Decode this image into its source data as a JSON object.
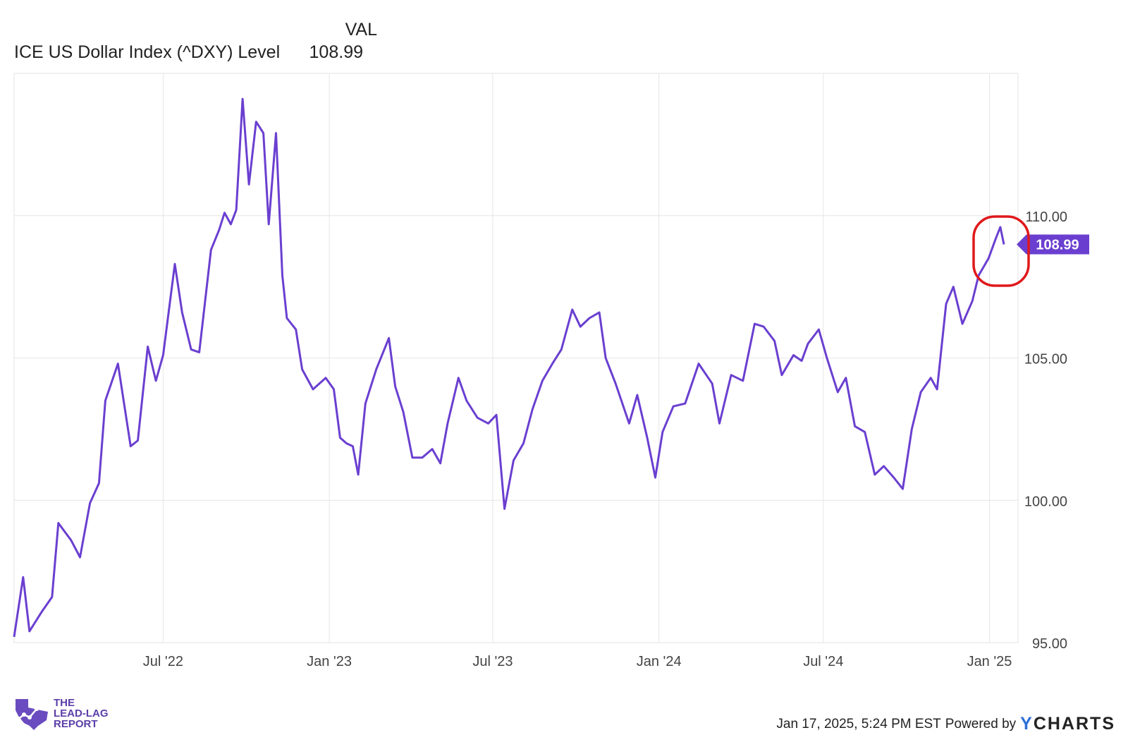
{
  "legend": {
    "column_header": "VAL",
    "series_name": "ICE US Dollar Index (^DXY) Level",
    "series_value": "108.99"
  },
  "chart_data": {
    "type": "line",
    "title": "",
    "xlabel": "",
    "ylabel": "",
    "ylim": [
      95,
      115
    ],
    "y_ticks": [
      "110.00",
      "105.00",
      "100.00",
      "95.00"
    ],
    "x_ticks": [
      "Jul '22",
      "Jan '23",
      "Jul '23",
      "Jan '24",
      "Jul '24",
      "Jan '25"
    ],
    "grid": true,
    "line_color": "#6a3fd0",
    "last_value_label": "108.99",
    "highlight": {
      "shape": "ellipse",
      "color": "#e0191b",
      "around": "latest values"
    },
    "series": [
      {
        "name": "ICE US Dollar Index (^DXY) Level",
        "points": [
          [
            "2022-01-17",
            95.2
          ],
          [
            "2022-01-27",
            97.3
          ],
          [
            "2022-02-03",
            95.4
          ],
          [
            "2022-02-17",
            96.1
          ],
          [
            "2022-02-28",
            96.6
          ],
          [
            "2022-03-07",
            99.2
          ],
          [
            "2022-03-14",
            98.9
          ],
          [
            "2022-03-21",
            98.6
          ],
          [
            "2022-03-31",
            98.0
          ],
          [
            "2022-04-11",
            99.9
          ],
          [
            "2022-04-21",
            100.6
          ],
          [
            "2022-04-28",
            103.5
          ],
          [
            "2022-05-12",
            104.8
          ],
          [
            "2022-05-26",
            101.9
          ],
          [
            "2022-06-03",
            102.1
          ],
          [
            "2022-06-14",
            105.4
          ],
          [
            "2022-06-23",
            104.2
          ],
          [
            "2022-07-01",
            105.1
          ],
          [
            "2022-07-14",
            108.3
          ],
          [
            "2022-07-22",
            106.6
          ],
          [
            "2022-08-01",
            105.3
          ],
          [
            "2022-08-10",
            105.2
          ],
          [
            "2022-08-23",
            108.8
          ],
          [
            "2022-09-01",
            109.5
          ],
          [
            "2022-09-07",
            110.1
          ],
          [
            "2022-09-14",
            109.7
          ],
          [
            "2022-09-20",
            110.2
          ],
          [
            "2022-09-27",
            114.1
          ],
          [
            "2022-10-04",
            111.1
          ],
          [
            "2022-10-12",
            113.3
          ],
          [
            "2022-10-20",
            112.9
          ],
          [
            "2022-10-26",
            109.7
          ],
          [
            "2022-11-03",
            112.9
          ],
          [
            "2022-11-10",
            107.9
          ],
          [
            "2022-11-15",
            106.4
          ],
          [
            "2022-11-25",
            106.0
          ],
          [
            "2022-12-02",
            104.6
          ],
          [
            "2022-12-14",
            103.9
          ],
          [
            "2022-12-28",
            104.3
          ],
          [
            "2023-01-06",
            103.9
          ],
          [
            "2023-01-13",
            102.2
          ],
          [
            "2023-01-20",
            102.0
          ],
          [
            "2023-01-27",
            101.9
          ],
          [
            "2023-02-02",
            100.9
          ],
          [
            "2023-02-10",
            103.4
          ],
          [
            "2023-02-22",
            104.6
          ],
          [
            "2023-03-08",
            105.7
          ],
          [
            "2023-03-15",
            104.0
          ],
          [
            "2023-03-24",
            103.1
          ],
          [
            "2023-04-03",
            101.5
          ],
          [
            "2023-04-14",
            101.5
          ],
          [
            "2023-04-25",
            101.8
          ],
          [
            "2023-05-04",
            101.3
          ],
          [
            "2023-05-12",
            102.7
          ],
          [
            "2023-05-24",
            104.3
          ],
          [
            "2023-06-02",
            103.5
          ],
          [
            "2023-06-14",
            102.9
          ],
          [
            "2023-06-26",
            102.7
          ],
          [
            "2023-07-05",
            103.0
          ],
          [
            "2023-07-14",
            99.7
          ],
          [
            "2023-07-24",
            101.4
          ],
          [
            "2023-08-04",
            102.0
          ],
          [
            "2023-08-14",
            103.2
          ],
          [
            "2023-08-25",
            104.2
          ],
          [
            "2023-09-05",
            104.8
          ],
          [
            "2023-09-15",
            105.3
          ],
          [
            "2023-09-27",
            106.7
          ],
          [
            "2023-10-06",
            106.1
          ],
          [
            "2023-10-16",
            106.4
          ],
          [
            "2023-10-27",
            106.6
          ],
          [
            "2023-11-03",
            105.0
          ],
          [
            "2023-11-14",
            104.1
          ],
          [
            "2023-11-29",
            102.7
          ],
          [
            "2023-12-08",
            103.7
          ],
          [
            "2023-12-19",
            102.2
          ],
          [
            "2023-12-28",
            100.8
          ],
          [
            "2024-01-05",
            102.4
          ],
          [
            "2024-01-17",
            103.3
          ],
          [
            "2024-01-30",
            103.4
          ],
          [
            "2024-02-14",
            104.8
          ],
          [
            "2024-02-29",
            104.1
          ],
          [
            "2024-03-08",
            102.7
          ],
          [
            "2024-03-21",
            104.4
          ],
          [
            "2024-04-03",
            104.2
          ],
          [
            "2024-04-16",
            106.2
          ],
          [
            "2024-04-26",
            106.1
          ],
          [
            "2024-05-08",
            105.6
          ],
          [
            "2024-05-16",
            104.4
          ],
          [
            "2024-05-29",
            105.1
          ],
          [
            "2024-06-07",
            104.9
          ],
          [
            "2024-06-14",
            105.5
          ],
          [
            "2024-06-26",
            106.0
          ],
          [
            "2024-07-05",
            105.0
          ],
          [
            "2024-07-17",
            103.8
          ],
          [
            "2024-07-26",
            104.3
          ],
          [
            "2024-08-05",
            102.6
          ],
          [
            "2024-08-16",
            102.4
          ],
          [
            "2024-08-27",
            100.9
          ],
          [
            "2024-09-06",
            101.2
          ],
          [
            "2024-09-17",
            100.8
          ],
          [
            "2024-09-27",
            100.4
          ],
          [
            "2024-10-07",
            102.5
          ],
          [
            "2024-10-17",
            103.8
          ],
          [
            "2024-10-28",
            104.3
          ],
          [
            "2024-11-04",
            103.9
          ],
          [
            "2024-11-14",
            106.9
          ],
          [
            "2024-11-22",
            107.5
          ],
          [
            "2024-12-02",
            106.2
          ],
          [
            "2024-12-13",
            107.0
          ],
          [
            "2024-12-20",
            107.9
          ],
          [
            "2024-12-31",
            108.5
          ],
          [
            "2025-01-08",
            109.2
          ],
          [
            "2025-01-13",
            109.6
          ],
          [
            "2025-01-17",
            108.99
          ]
        ]
      }
    ]
  },
  "footer": {
    "timestamp": "Jan 17, 2025, 5:24 PM EST",
    "powered_by": "Powered by",
    "brand_initial": "Y",
    "brand_rest": "CHARTS"
  },
  "logo": {
    "line1": "THE",
    "line2": "LEAD-LAG",
    "line3": "REPORT",
    "color": "#5b3ea8"
  }
}
